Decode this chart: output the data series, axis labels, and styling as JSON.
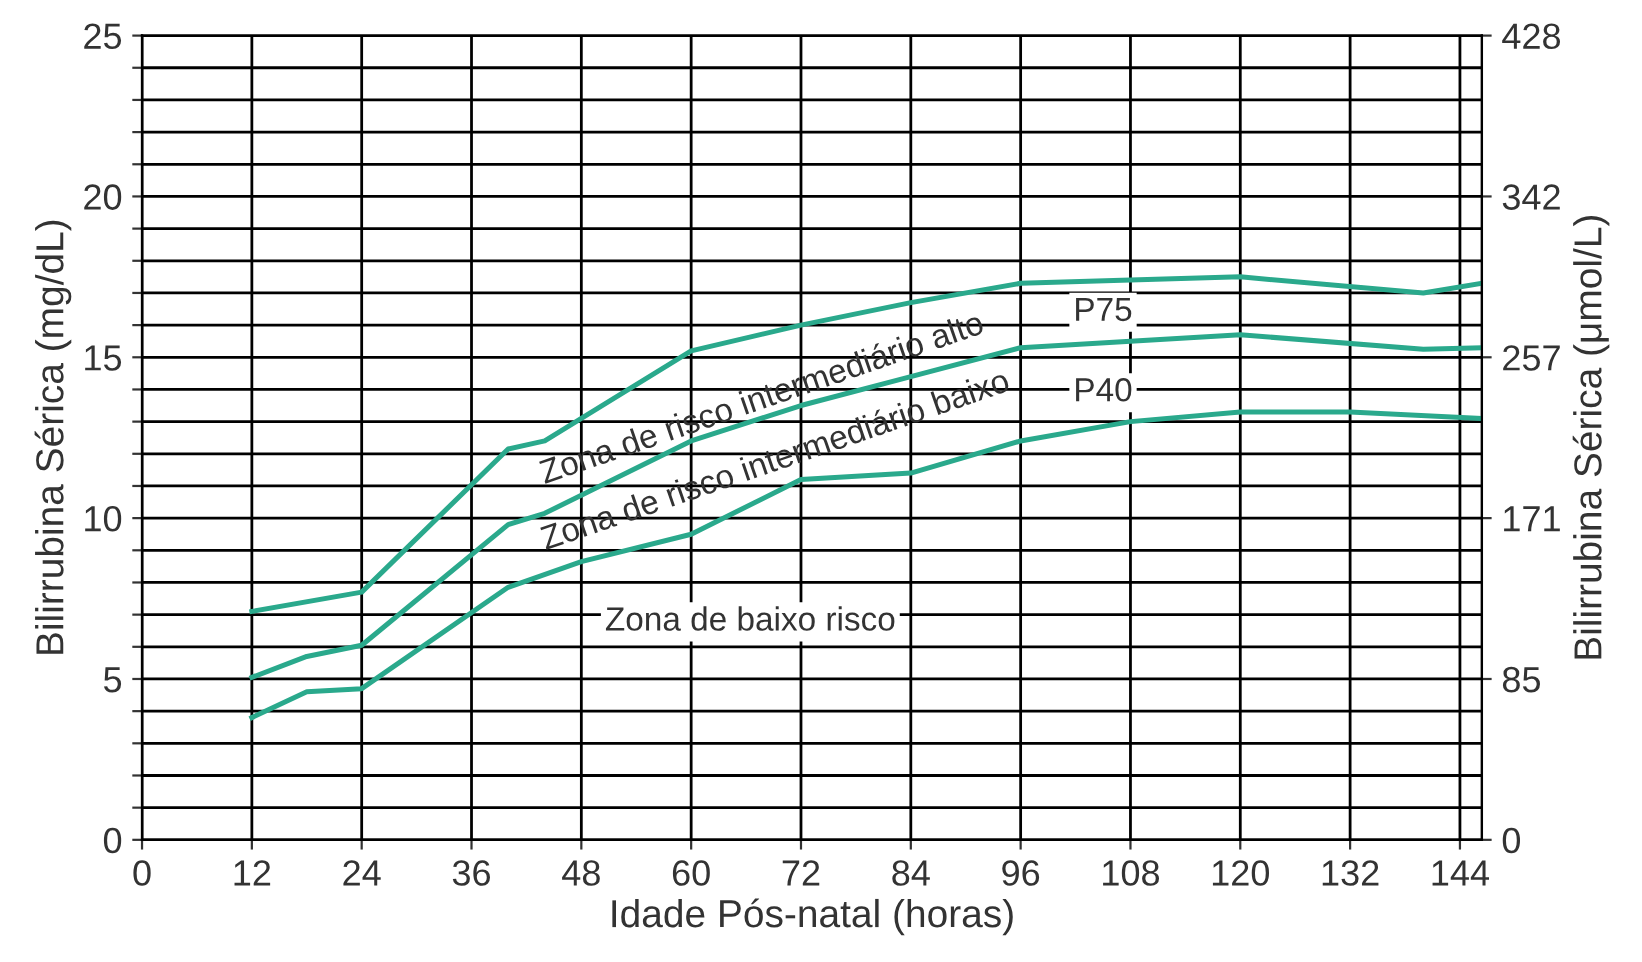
{
  "chart_data": {
    "type": "line",
    "xlabel": "Idade Pós-natal (horas)",
    "ylabel": "Bilirrubina Sérica (mg/dL)",
    "y2label": "Bilirrubina Sérica (μmol/L)",
    "series": [
      {
        "color": "#2aa98c",
        "x": [
          12,
          24,
          40,
          44,
          60,
          72,
          84,
          96,
          120,
          140,
          146.4
        ],
        "values": [
          7.1,
          7.7,
          12.15,
          12.4,
          15.2,
          16.0,
          16.7,
          17.3,
          17.5,
          17.0,
          17.3
        ]
      },
      {
        "color": "#2aa98c",
        "x": [
          12,
          18,
          24,
          40,
          44,
          60,
          72,
          84,
          96,
          120,
          140,
          146.4
        ],
        "values": [
          5.05,
          5.7,
          6.05,
          9.8,
          10.15,
          12.4,
          13.5,
          14.4,
          15.3,
          15.7,
          15.25,
          15.3
        ]
      },
      {
        "color": "#2aa98c",
        "x": [
          12,
          18,
          24,
          40,
          48,
          60,
          72,
          84,
          96,
          108,
          120,
          132,
          146.4
        ],
        "values": [
          3.8,
          4.6,
          4.7,
          7.85,
          8.65,
          9.5,
          11.2,
          11.4,
          12.4,
          13.0,
          13.3,
          13.3,
          13.1
        ]
      }
    ],
    "annotations": [
      "Zona de risco intermediário alto",
      "Zona de risco intermediário baixo",
      "Zona de baixo risco",
      {
        "text": "P75",
        "x": 105,
        "y": 16.4
      },
      {
        "text": "P40",
        "x": 105,
        "y": 13.9
      }
    ],
    "xlim": [
      0,
      146.4
    ],
    "xticks": [
      0,
      12,
      24,
      36,
      48,
      60,
      72,
      84,
      96,
      108,
      120,
      132,
      144
    ],
    "ylim": [
      0,
      25
    ],
    "yticks": [
      0,
      {
        "value": 1,
        "label": null
      },
      {
        "value": 2,
        "label": null
      },
      {
        "value": 3,
        "label": null
      },
      {
        "value": 4,
        "label": null
      },
      5,
      {
        "value": 6,
        "label": null
      },
      {
        "value": 7,
        "label": null
      },
      {
        "value": 8,
        "label": null
      },
      {
        "value": 9,
        "label": null
      },
      10,
      {
        "value": 11,
        "label": null
      },
      {
        "value": 12,
        "label": null
      },
      {
        "value": 13,
        "label": null
      },
      {
        "value": 14,
        "label": null
      },
      15,
      {
        "value": 16,
        "label": null
      },
      {
        "value": 17,
        "label": null
      },
      {
        "value": 18,
        "label": null
      },
      {
        "value": 19,
        "label": null
      },
      20,
      {
        "value": 21,
        "label": null
      },
      {
        "value": 22,
        "label": null
      },
      {
        "value": 23,
        "label": null
      },
      {
        "value": 24,
        "label": null
      },
      25
    ],
    "y2lim": [
      0,
      427.5
    ],
    "y2ticks": [
      0,
      {
        "value": 85.5,
        "label": "85"
      },
      171,
      {
        "value": 256.5,
        "label": "257"
      },
      342,
      {
        "value": 427.5,
        "label": "428"
      }
    ],
    "grid": true,
    "legend": false,
    "marker": "none",
    "line_style": "solid"
  }
}
